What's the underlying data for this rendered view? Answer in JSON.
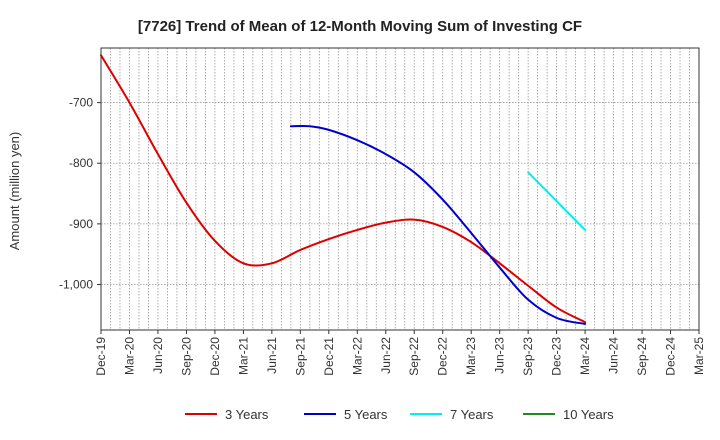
{
  "chart_data": {
    "type": "line",
    "title": "[7726]  Trend of Mean of 12-Month Moving Sum of Investing CF",
    "xlabel": "",
    "ylabel": "Amount (million yen)",
    "ylim": [
      -1075,
      -610
    ],
    "yticks": [
      -700,
      -800,
      -900,
      -1000
    ],
    "ytick_labels": [
      "-700",
      "-800",
      "-900",
      "-1,000"
    ],
    "x_tick_labels": [
      "Dec-19",
      "Mar-20",
      "Jun-20",
      "Sep-20",
      "Dec-20",
      "Mar-21",
      "Jun-21",
      "Sep-21",
      "Dec-21",
      "Mar-22",
      "Jun-22",
      "Sep-22",
      "Dec-22",
      "Mar-23",
      "Jun-23",
      "Sep-23",
      "Dec-23",
      "Mar-24",
      "Jun-24",
      "Sep-24",
      "Dec-24",
      "Mar-25"
    ],
    "x_month_range": [
      0,
      63
    ],
    "grid": true,
    "legend_position": "bottom",
    "series": [
      {
        "name": "3 Years",
        "color": "#dd0000",
        "x": [
          0,
          3,
          6,
          9,
          12,
          15,
          18,
          21,
          24,
          27,
          30,
          33,
          36,
          39,
          42,
          45,
          48,
          51
        ],
        "values": [
          -622,
          -700,
          -785,
          -865,
          -928,
          -965,
          -965,
          -943,
          -925,
          -910,
          -898,
          -893,
          -905,
          -930,
          -965,
          -1002,
          -1038,
          -1062
        ]
      },
      {
        "name": "5 Years",
        "color": "#0000cc",
        "x": [
          20,
          22,
          24,
          27,
          30,
          33,
          36,
          39,
          42,
          45,
          48,
          51
        ],
        "values": [
          -739,
          -739,
          -745,
          -762,
          -785,
          -815,
          -860,
          -915,
          -972,
          -1025,
          -1055,
          -1065
        ]
      },
      {
        "name": "7 Years",
        "color": "#00eeee",
        "x": [
          45,
          51
        ],
        "values": [
          -815,
          -910
        ]
      },
      {
        "name": "10 Years",
        "color": "#228822",
        "x": [],
        "values": []
      }
    ]
  }
}
